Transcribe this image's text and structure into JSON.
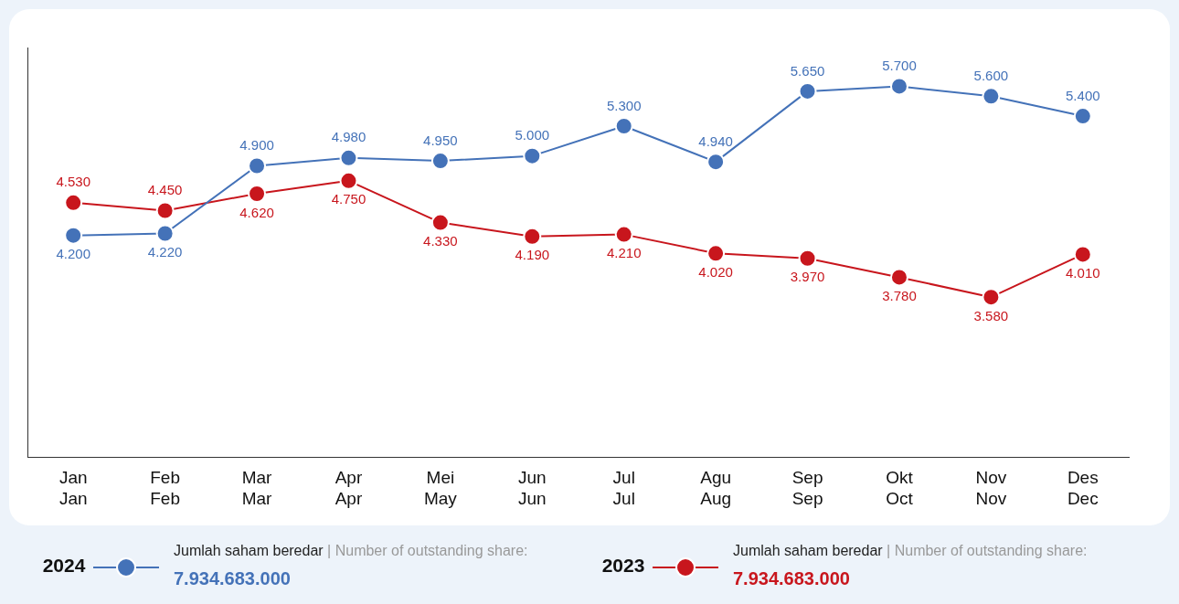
{
  "chart_data": {
    "type": "line",
    "categories": [
      "Jan\nJan",
      "Feb\nFeb",
      "Mar\nMar",
      "Apr\nApr",
      "Mei\nMay",
      "Jun\nJun",
      "Jul\nJul",
      "Agu\nAug",
      "Sep\nSep",
      "Okt\nOct",
      "Nov\nNov",
      "Des\nDec"
    ],
    "series": [
      {
        "name": "2024",
        "color": "#4472b8",
        "values": [
          4200,
          4220,
          4900,
          4980,
          4950,
          5000,
          5300,
          4940,
          5650,
          5700,
          5600,
          5400
        ],
        "value_labels": [
          "4.200",
          "4.220",
          "4.900",
          "4.980",
          "4.950",
          "5.000",
          "5.300",
          "4.940",
          "5.650",
          "5.700",
          "5.600",
          "5.400"
        ]
      },
      {
        "name": "2023",
        "color": "#c8161d",
        "values": [
          4530,
          4450,
          4620,
          4750,
          4330,
          4190,
          4210,
          4020,
          3970,
          3780,
          3580,
          4010
        ],
        "value_labels": [
          "4.530",
          "4.450",
          "4.620",
          "4.750",
          "4.330",
          "4.190",
          "4.210",
          "4.020",
          "3.970",
          "3.780",
          "3.580",
          "4.010"
        ]
      }
    ],
    "ylim": [
      1970,
      6090
    ],
    "tick_labels": "x",
    "grid": false,
    "marker": "circle",
    "line_style": "solid",
    "legend": "bottom",
    "annotations": [
      "Jumlah saham beredar",
      "| Number of outstanding share:",
      "7.934.683.000",
      "Jumlah saham beredar",
      "| Number of outstanding share:",
      "7.934.683.000"
    ]
  }
}
